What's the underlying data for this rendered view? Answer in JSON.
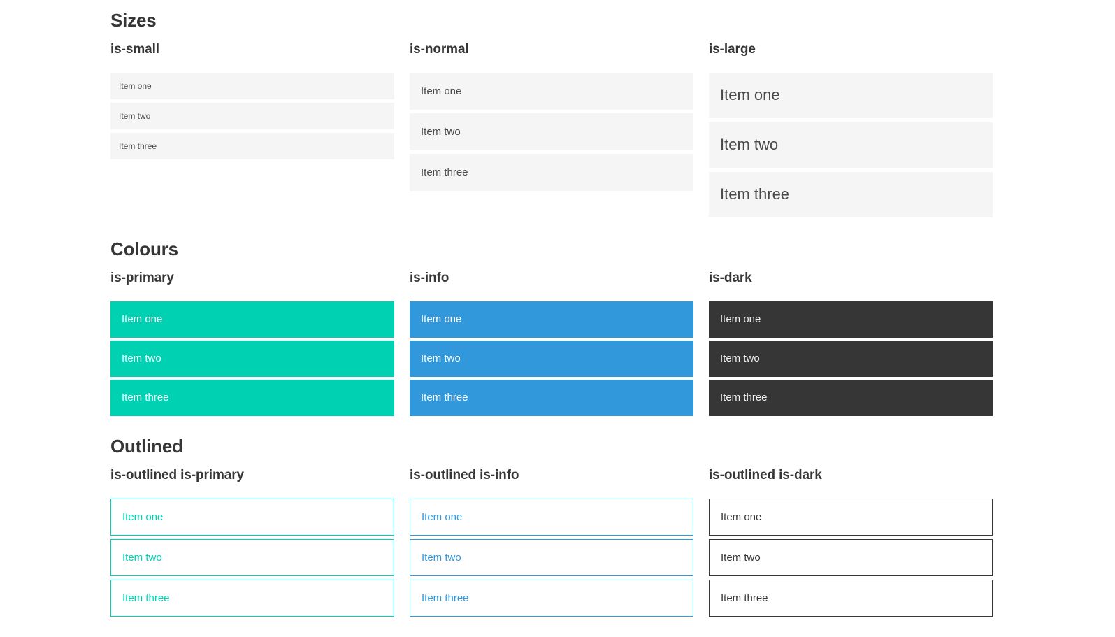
{
  "sections": [
    {
      "title": "Sizes",
      "groups": [
        {
          "label": "is-small",
          "items": [
            "Item one",
            "Item two",
            "Item three"
          ]
        },
        {
          "label": "is-normal",
          "items": [
            "Item one",
            "Item two",
            "Item three"
          ]
        },
        {
          "label": "is-large",
          "items": [
            "Item one",
            "Item two",
            "Item three"
          ]
        }
      ]
    },
    {
      "title": "Colours",
      "groups": [
        {
          "label": "is-primary",
          "items": [
            "Item one",
            "Item two",
            "Item three"
          ]
        },
        {
          "label": "is-info",
          "items": [
            "Item one",
            "Item two",
            "Item three"
          ]
        },
        {
          "label": "is-dark",
          "items": [
            "Item one",
            "Item two",
            "Item three"
          ]
        }
      ]
    },
    {
      "title": "Outlined",
      "groups": [
        {
          "label": "is-outlined is-primary",
          "items": [
            "Item one",
            "Item two",
            "Item three"
          ]
        },
        {
          "label": "is-outlined is-info",
          "items": [
            "Item one",
            "Item two",
            "Item three"
          ]
        },
        {
          "label": "is-outlined is-dark",
          "items": [
            "Item one",
            "Item two",
            "Item three"
          ]
        }
      ]
    }
  ],
  "colors": {
    "primary": "#00d1b2",
    "info": "#3298dc",
    "dark": "#363636",
    "item-bg": "#f5f5f5",
    "heading": "#363636",
    "text": "#4a4a4a"
  }
}
